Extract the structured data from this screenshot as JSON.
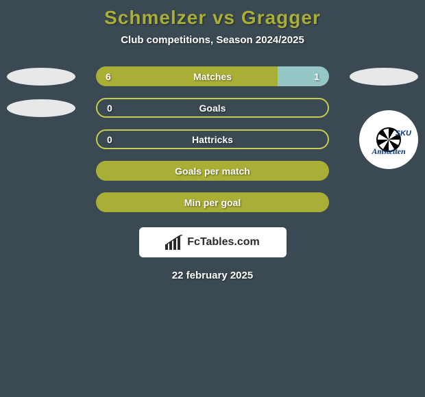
{
  "title": "Schmelzer vs Gragger",
  "subtitle": "Club competitions, Season 2024/2025",
  "date": "22 february 2025",
  "branding_text": "FcTables.com",
  "colors": {
    "background": "#3b4a52",
    "title": "#a9af36",
    "bar_left": "#a9af36",
    "bar_right": "#95c7c7",
    "bar_border": "#c7cd50",
    "bar_empty": "#3b4a52",
    "text": "#ffffff",
    "badge": "#e8e8e8",
    "brand_bg": "#ffffff"
  },
  "legend": {
    "left_player": "Schmelzer",
    "right_player": "Gragger"
  },
  "rows": [
    {
      "label": "Matches",
      "left_val": "6",
      "right_val": "1",
      "left_pct": 78,
      "right_pct": 22,
      "left_color": "#a9af36",
      "right_color": "#95c7c7",
      "show_left": true,
      "show_right": true,
      "show_left_badge": true,
      "show_right_badge": true,
      "show_logo": false
    },
    {
      "label": "Goals",
      "left_val": "0",
      "right_val": "",
      "left_pct": 100,
      "right_pct": 0,
      "left_color": "transparent",
      "right_color": "transparent",
      "show_left": true,
      "show_right": false,
      "show_left_badge": true,
      "show_right_badge": false,
      "show_logo": false,
      "border_only": true
    },
    {
      "label": "Hattricks",
      "left_val": "0",
      "right_val": "",
      "left_pct": 100,
      "right_pct": 0,
      "left_color": "transparent",
      "right_color": "transparent",
      "show_left": true,
      "show_right": false,
      "show_left_badge": false,
      "show_right_badge": false,
      "show_logo": true,
      "border_only": true
    },
    {
      "label": "Goals per match",
      "left_val": "",
      "right_val": "",
      "left_pct": 100,
      "right_pct": 0,
      "left_color": "#a9af36",
      "right_color": "transparent",
      "show_left": false,
      "show_right": false,
      "show_left_badge": false,
      "show_right_badge": false,
      "show_logo": false
    },
    {
      "label": "Min per goal",
      "left_val": "",
      "right_val": "",
      "left_pct": 100,
      "right_pct": 0,
      "left_color": "#a9af36",
      "right_color": "transparent",
      "show_left": false,
      "show_right": false,
      "show_left_badge": false,
      "show_right_badge": false,
      "show_logo": false
    }
  ],
  "logo": {
    "line1": "SKU",
    "line2": "Amstetten"
  }
}
